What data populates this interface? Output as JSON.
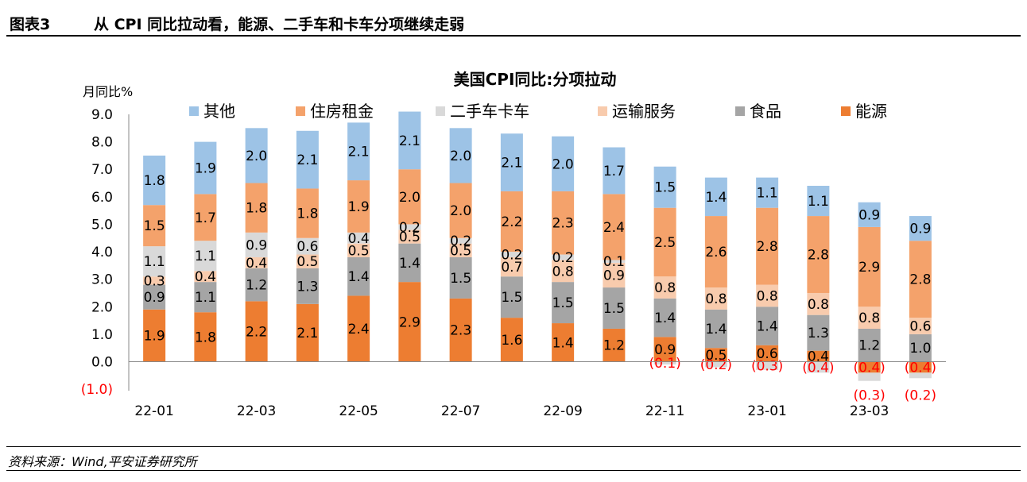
{
  "header": {
    "figure_no": "图表3",
    "title": "从 CPI 同比拉动看，能源、二手车和卡车分项继续走弱"
  },
  "source": "资料来源：Wind,平安证券研究所",
  "chart_data": {
    "type": "bar",
    "stacked": true,
    "title": "美国CPI同比:分项拉动",
    "ylabel": "月同比%",
    "ylim": [
      -1.0,
      9.0
    ],
    "y_ticks": [
      "(1.0)",
      "0.0",
      "1.0",
      "2.0",
      "3.0",
      "4.0",
      "5.0",
      "6.0",
      "7.0",
      "8.0",
      "9.0"
    ],
    "categories": [
      "22-01",
      "22-02",
      "22-03",
      "22-04",
      "22-05",
      "22-06",
      "22-07",
      "22-08",
      "22-09",
      "22-10",
      "22-11",
      "22-12",
      "23-01",
      "23-02",
      "23-03",
      "23-04"
    ],
    "x_tick_labels": [
      "22-01",
      "22-03",
      "22-05",
      "22-07",
      "22-09",
      "22-11",
      "23-01",
      "23-03"
    ],
    "legend": [
      "其他",
      "住房租金",
      "二手车卡车",
      "运输服务",
      "食品",
      "能源"
    ],
    "legend_position": "top",
    "series": [
      {
        "name": "能源",
        "color": "#ED7D31",
        "values": [
          1.9,
          1.8,
          2.2,
          2.1,
          2.4,
          2.9,
          2.3,
          1.6,
          1.4,
          1.2,
          0.9,
          0.5,
          0.6,
          0.4,
          -0.4,
          -0.4
        ],
        "labels": [
          "1.9",
          "1.8",
          "2.2",
          "2.1",
          "2.4",
          "2.9",
          "2.3",
          "1.6",
          "1.4",
          "1.2",
          "0.9",
          "0.5",
          "0.6",
          "0.4",
          "(0.4)",
          "(0.4)"
        ]
      },
      {
        "name": "食品",
        "color": "#A5A5A5",
        "values": [
          0.9,
          1.1,
          1.2,
          1.3,
          1.4,
          1.4,
          1.5,
          1.5,
          1.5,
          1.5,
          1.4,
          1.4,
          1.4,
          1.3,
          1.2,
          1.0
        ],
        "labels": [
          "0.9",
          "1.1",
          "1.2",
          "1.3",
          "1.4",
          "1.4",
          "1.5",
          "1.5",
          "1.5",
          "1.5",
          "1.4",
          "1.4",
          "1.4",
          "1.3",
          "1.2",
          "1.0"
        ]
      },
      {
        "name": "运输服务",
        "color": "#F8CBAD",
        "values": [
          0.3,
          0.4,
          0.4,
          0.5,
          0.5,
          0.5,
          0.5,
          0.7,
          0.8,
          0.9,
          0.8,
          0.8,
          0.8,
          0.8,
          0.8,
          0.6
        ],
        "labels": [
          "0.3",
          "0.4",
          "0.4",
          "0.5",
          "0.5",
          "0.5",
          "0.5",
          "0.7",
          "0.8",
          "0.9",
          "0.8",
          "0.8",
          "0.8",
          "0.8",
          "0.8",
          "0.6"
        ]
      },
      {
        "name": "二手车卡车",
        "color": "#D9D9D9",
        "values": [
          1.1,
          1.1,
          0.9,
          0.6,
          0.4,
          0.2,
          0.2,
          0.2,
          0.2,
          0.1,
          -0.1,
          -0.2,
          -0.3,
          -0.4,
          -0.3,
          -0.2
        ],
        "labels": [
          "1.1",
          "1.1",
          "0.9",
          "0.6",
          "0.4",
          "0.2",
          "0.2",
          "0.2",
          "0.2",
          "0.1",
          "(0.1)",
          "(0.2)",
          "(0.3)",
          "(0.4)",
          "(0.3)",
          "(0.2)"
        ]
      },
      {
        "name": "住房租金",
        "color": "#F4A26B",
        "values": [
          1.5,
          1.7,
          1.8,
          1.8,
          1.9,
          2.0,
          2.0,
          2.2,
          2.3,
          2.4,
          2.5,
          2.6,
          2.8,
          2.8,
          2.9,
          2.8
        ],
        "labels": [
          "1.5",
          "1.7",
          "1.8",
          "1.8",
          "1.9",
          "2.0",
          "2.0",
          "2.2",
          "2.3",
          "2.4",
          "2.5",
          "2.6",
          "2.8",
          "2.8",
          "2.9",
          "2.8"
        ]
      },
      {
        "name": "其他",
        "color": "#9DC3E6",
        "values": [
          1.8,
          1.9,
          2.0,
          2.1,
          2.1,
          2.1,
          2.0,
          2.1,
          2.0,
          1.7,
          1.5,
          1.4,
          1.1,
          1.1,
          0.9,
          0.9
        ],
        "labels": [
          "1.8",
          "1.9",
          "2.0",
          "2.1",
          "2.1",
          "2.1",
          "2.0",
          "2.1",
          "2.0",
          "1.7",
          "1.5",
          "1.4",
          "1.1",
          "1.1",
          "0.9",
          "0.9"
        ]
      }
    ],
    "negative_label_color": "#FF0000"
  }
}
